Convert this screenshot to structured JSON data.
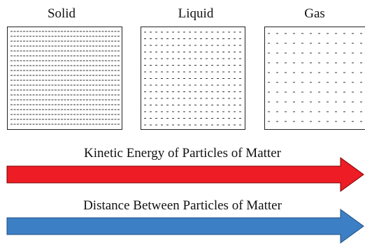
{
  "states": [
    {
      "key": "solid",
      "label": "Solid"
    },
    {
      "key": "liquid",
      "label": "Liquid"
    },
    {
      "key": "gas",
      "label": "Gas"
    }
  ],
  "arrows": [
    {
      "key": "kinetic",
      "label": "Kinetic Energy of Particles of Matter",
      "color": "#ee1c25"
    },
    {
      "key": "distance",
      "label": "Distance Between Particles of Matter",
      "color": "#3d7fc4"
    }
  ],
  "colors": {
    "box_border": "#222222",
    "particle": "#333333"
  }
}
